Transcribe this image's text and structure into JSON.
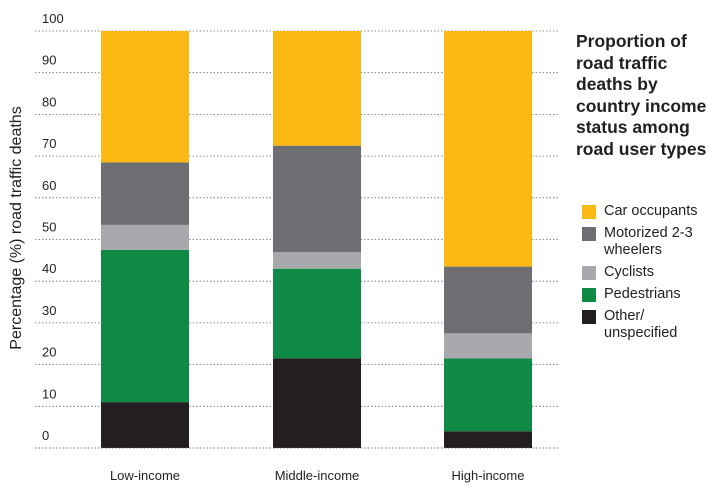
{
  "chart_data": {
    "type": "bar",
    "stacked": true,
    "title": "Proportion of road traffic deaths by country income status among road user types",
    "ylabel": "Percentage (%) road traffic deaths",
    "xlabel": "",
    "ylim": [
      0,
      100
    ],
    "yticks": [
      0,
      10,
      20,
      30,
      40,
      50,
      60,
      70,
      80,
      90,
      100
    ],
    "grid": "horizontal-dotted",
    "legend_position": "right",
    "categories": [
      "Low-income",
      "Middle-income",
      "High-income"
    ],
    "series": [
      {
        "name": "Other/ unspecified",
        "color": "#231f20",
        "values": [
          11,
          21.5,
          4
        ]
      },
      {
        "name": "Pedestrians",
        "color": "#0f8a44",
        "values": [
          36.5,
          21.5,
          17.5
        ]
      },
      {
        "name": "Cyclists",
        "color": "#a7a9ac",
        "values": [
          6,
          4,
          6
        ]
      },
      {
        "name": "Motorized 2-3 wheelers",
        "color": "#6d6e71",
        "values": [
          15,
          25.5,
          16
        ]
      },
      {
        "name": "Car occupants",
        "color": "#fdb913",
        "values": [
          31.5,
          27.5,
          56.5
        ]
      }
    ],
    "legend_order": [
      "Car occupants",
      "Motorized 2-3 wheelers",
      "Cyclists",
      "Pedestrians",
      "Other/ unspecified"
    ]
  }
}
